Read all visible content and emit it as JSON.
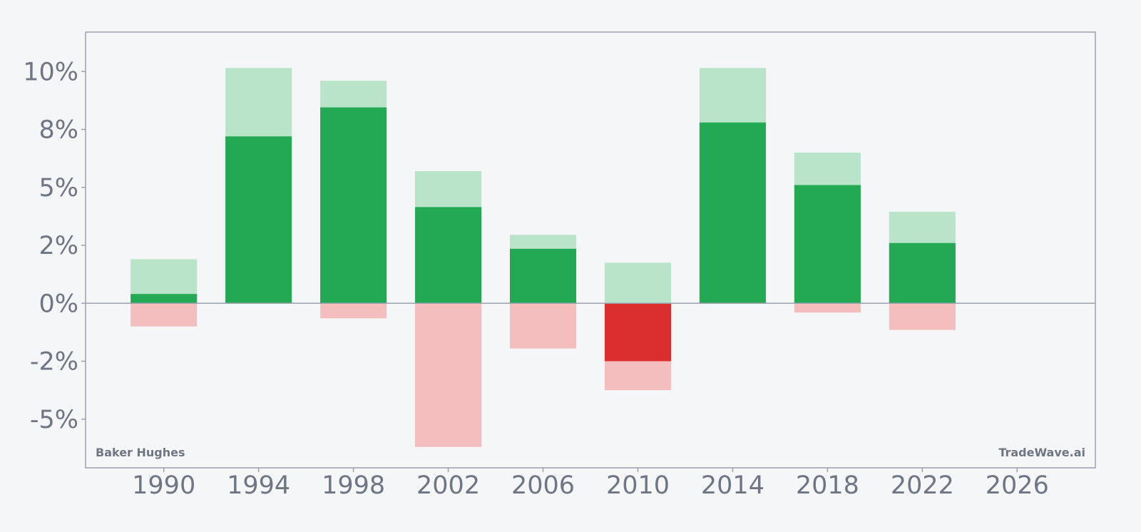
{
  "chart_data": {
    "type": "bar",
    "categories": [
      "1990",
      "1994",
      "1998",
      "2002",
      "2006",
      "2010",
      "2014",
      "2018",
      "2022"
    ],
    "x_values": [
      1990,
      1994,
      1998,
      2002,
      2006,
      2010,
      2014,
      2018,
      2022
    ],
    "series": [
      {
        "values": [
          0.4,
          7.2,
          8.45,
          4.15,
          2.35,
          -2.5,
          7.8,
          5.1,
          2.6
        ],
        "color_positive": "#23a953",
        "color_negative": "#db2f2f"
      },
      {
        "values": [
          1.9,
          10.15,
          9.6,
          5.7,
          2.95,
          1.75,
          10.15,
          6.5,
          3.95
        ],
        "color": "#b9e4c9"
      },
      {
        "values": [
          -1.0,
          0,
          -0.65,
          -6.2,
          -1.95,
          -3.75,
          0,
          -0.4,
          -1.15
        ],
        "color": "#f4bebe"
      }
    ],
    "xlim": [
      1986.7,
      2029.3
    ],
    "ylim": [
      -7.1,
      11.7
    ],
    "x_ticks": [
      {
        "value": 1990,
        "label": "1990"
      },
      {
        "value": 1994,
        "label": "1994"
      },
      {
        "value": 1998,
        "label": "1998"
      },
      {
        "value": 2002,
        "label": "2002"
      },
      {
        "value": 2006,
        "label": "2006"
      },
      {
        "value": 2010,
        "label": "2010"
      },
      {
        "value": 2014,
        "label": "2014"
      },
      {
        "value": 2018,
        "label": "2018"
      },
      {
        "value": 2022,
        "label": "2022"
      },
      {
        "value": 2026,
        "label": "2026"
      }
    ],
    "y_ticks": [
      {
        "value": 10,
        "label": "10%"
      },
      {
        "value": 7.5,
        "label": "8%"
      },
      {
        "value": 5,
        "label": "5%"
      },
      {
        "value": 2.5,
        "label": "2%"
      },
      {
        "value": 0,
        "label": "0%"
      },
      {
        "value": -2.5,
        "label": "-2%"
      },
      {
        "value": -5,
        "label": "-5%"
      }
    ],
    "grid": false,
    "zero_line": true,
    "bottom_left_label": "Baker Hughes",
    "bottom_right_label": "TradeWave.ai",
    "colors": {
      "background": "#f4f6f8",
      "frame": "#9ba1ad",
      "text": "#6f7583"
    }
  }
}
